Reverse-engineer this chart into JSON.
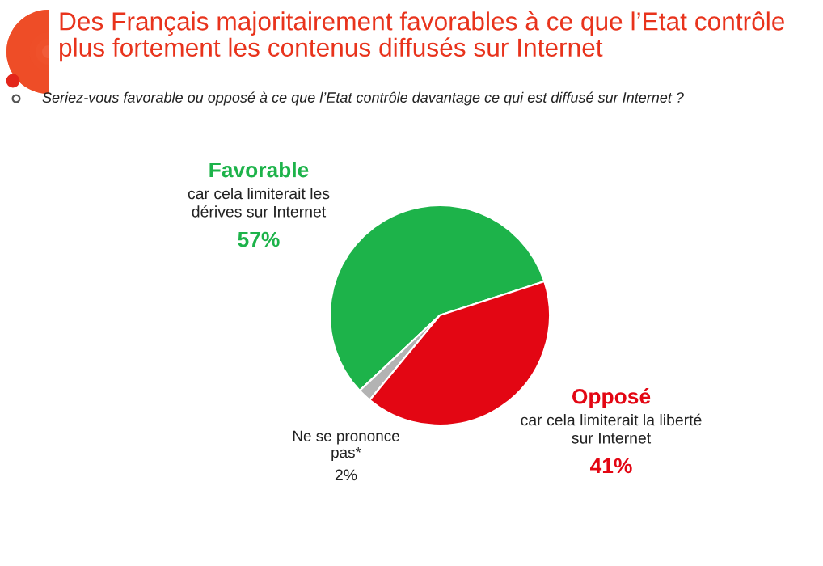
{
  "chart_data": {
    "type": "pie",
    "title": "Des Français majoritairement favorables à ce que l’Etat contrôle\nplus fortement les contenus diffusés sur Internet",
    "subtitle": "Seriez-vous favorable ou opposé à ce que l’Etat contrôle davantage ce qui est diffusé sur Internet ?",
    "categories": [
      "Favorable",
      "Ne se prononce\npas*",
      "Opposé"
    ],
    "values": [
      57,
      2,
      41
    ],
    "value_labels": [
      "57%",
      "2%",
      "41%"
    ],
    "colors": [
      "#1db34a",
      "#b3b3b3",
      "#e30613"
    ],
    "annotations": [
      "car cela limiterait les\ndérives sur Internet",
      null,
      "car cela limiterait la liberté\nsur Internet"
    ]
  }
}
